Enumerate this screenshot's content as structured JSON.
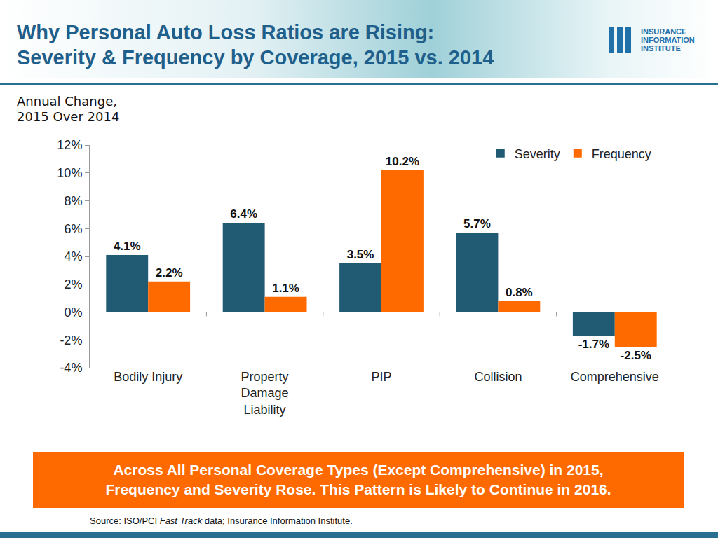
{
  "chart_data": {
    "type": "bar",
    "title": [
      "Why Personal Auto Loss Ratios are Rising:",
      "Severity & Frequency by Coverage, 2015 vs. 2014"
    ],
    "subtitle": [
      "Annual Change,",
      "2015 Over 2014"
    ],
    "categories": [
      "Bodily Injury",
      "Property Damage Liability",
      "PIP",
      "Collision",
      "Comprehensive"
    ],
    "series": [
      {
        "name": "Severity",
        "color": "#215a73",
        "values": [
          4.1,
          6.4,
          3.5,
          5.7,
          -1.7
        ],
        "value_labels": [
          "4.1%",
          "6.4%",
          "3.5%",
          "5.7%",
          "-1.7%"
        ]
      },
      {
        "name": "Frequency",
        "color": "#ff6a00",
        "values": [
          2.2,
          1.1,
          10.2,
          0.8,
          -2.5
        ],
        "value_labels": [
          "2.2%",
          "1.1%",
          "10.2%",
          "0.8%",
          "-2.5%"
        ]
      }
    ],
    "ylim": [
      -4,
      12
    ],
    "yticks": [
      {
        "value": -4,
        "label": "-4%"
      },
      {
        "value": -2,
        "label": "-2%"
      },
      {
        "value": 0,
        "label": "0%"
      },
      {
        "value": 2,
        "label": "2%"
      },
      {
        "value": 4,
        "label": "4%"
      },
      {
        "value": 6,
        "label": "6%"
      },
      {
        "value": 8,
        "label": "8%"
      },
      {
        "value": 10,
        "label": "10%"
      },
      {
        "value": 12,
        "label": "12%"
      }
    ],
    "grid": false,
    "legend": "top right",
    "data_labels": true
  },
  "logo": [
    "INSURANCE",
    "INFORMATION",
    "INSTITUTE"
  ],
  "banner": [
    "Across All Personal Coverage Types (Except Comprehensive) in 2015,",
    "Frequency and Severity Rose. This Pattern is Likely to Continue in 2016."
  ],
  "source": {
    "text": "Source: ISO/PCI Fast Track data; Insurance Information Institute.",
    "italic": "Fast Track"
  }
}
